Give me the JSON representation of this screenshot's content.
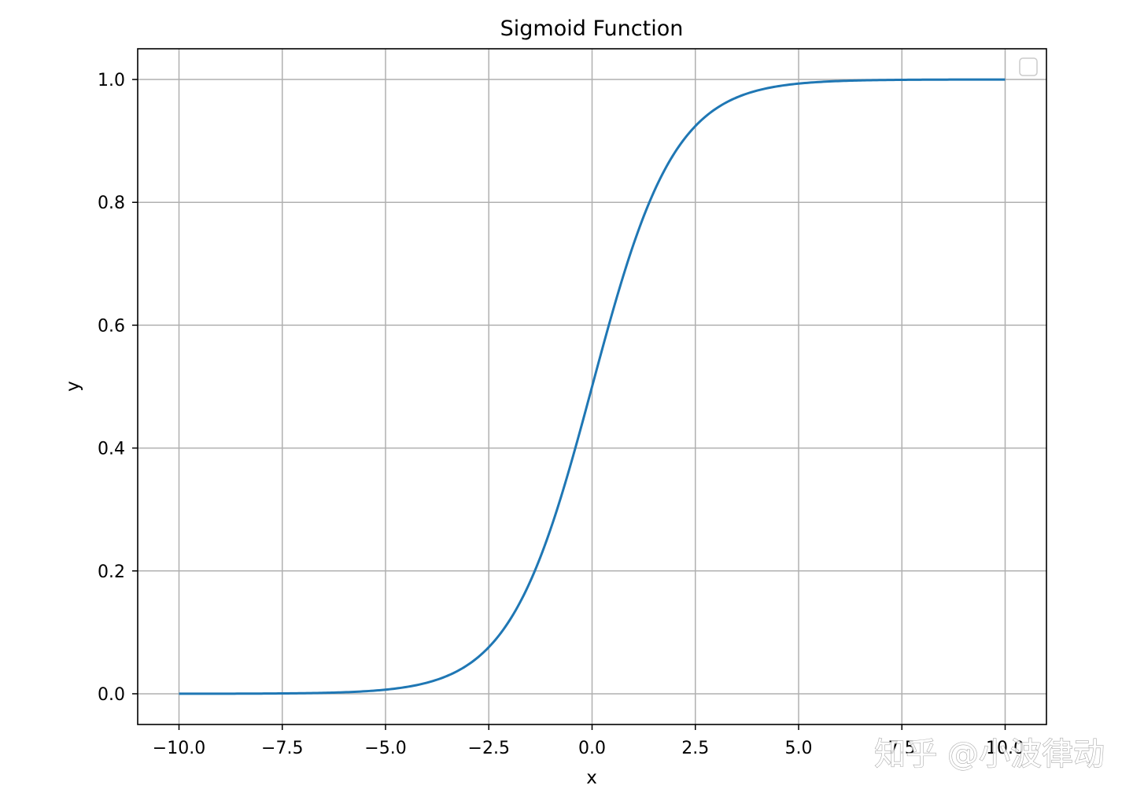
{
  "chart_data": {
    "type": "line",
    "title": "Sigmoid Function",
    "xlabel": "x",
    "ylabel": "y",
    "xlim": [
      -11.0,
      11.0
    ],
    "ylim": [
      -0.05,
      1.05
    ],
    "xticks": [
      -10.0,
      -7.5,
      -5.0,
      -2.5,
      0.0,
      2.5,
      5.0,
      7.5,
      10.0
    ],
    "xtick_labels": [
      "−10.0",
      "−7.5",
      "−5.0",
      "−2.5",
      "0.0",
      "2.5",
      "5.0",
      "7.5",
      "10.0"
    ],
    "yticks": [
      0.0,
      0.2,
      0.4,
      0.6,
      0.8,
      1.0
    ],
    "ytick_labels": [
      "0.0",
      "0.2",
      "0.4",
      "0.6",
      "0.8",
      "1.0"
    ],
    "grid": true,
    "legend": "top-right (empty)",
    "series": [
      {
        "color": "#1f77b4",
        "x": [
          -10,
          -9,
          -8,
          -7,
          -6,
          -5,
          -4.5,
          -4,
          -3.5,
          -3,
          -2.5,
          -2,
          -1.5,
          -1,
          -0.5,
          0,
          0.5,
          1,
          1.5,
          2,
          2.5,
          3,
          3.5,
          4,
          4.5,
          5,
          6,
          7,
          8,
          9,
          10
        ],
        "y": [
          5e-05,
          0.00012,
          0.00034,
          0.00091,
          0.00247,
          0.00669,
          0.01099,
          0.01799,
          0.02931,
          0.04743,
          0.07586,
          0.1192,
          0.18243,
          0.26894,
          0.37754,
          0.5,
          0.62246,
          0.73106,
          0.81757,
          0.8808,
          0.92414,
          0.95257,
          0.97069,
          0.98201,
          0.98901,
          0.99331,
          0.99753,
          0.99909,
          0.99966,
          0.99988,
          0.99995
        ]
      }
    ]
  },
  "watermark": {
    "text": "知乎 @小波律动"
  }
}
